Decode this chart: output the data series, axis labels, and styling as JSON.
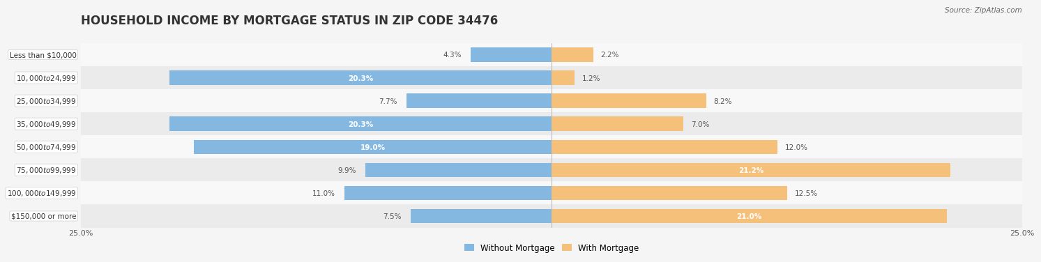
{
  "title": "HOUSEHOLD INCOME BY MORTGAGE STATUS IN ZIP CODE 34476",
  "source": "Source: ZipAtlas.com",
  "categories": [
    "Less than $10,000",
    "$10,000 to $24,999",
    "$25,000 to $34,999",
    "$35,000 to $49,999",
    "$50,000 to $74,999",
    "$75,000 to $99,999",
    "$100,000 to $149,999",
    "$150,000 or more"
  ],
  "without_mortgage": [
    4.3,
    20.3,
    7.7,
    20.3,
    19.0,
    9.9,
    11.0,
    7.5
  ],
  "with_mortgage": [
    2.2,
    1.2,
    8.2,
    7.0,
    12.0,
    21.2,
    12.5,
    21.0
  ],
  "blue_color": "#85b8e0",
  "orange_color": "#f5c07a",
  "row_bg_odd": "#f0f0f0",
  "row_bg_even": "#e0e0e0",
  "xlim": [
    0,
    25
  ],
  "legend_labels": [
    "Without Mortgage",
    "With Mortgage"
  ],
  "title_fontsize": 12,
  "bar_height": 0.62,
  "fig_bg": "#f5f5f5",
  "panel_bg": "#f8f8f8"
}
